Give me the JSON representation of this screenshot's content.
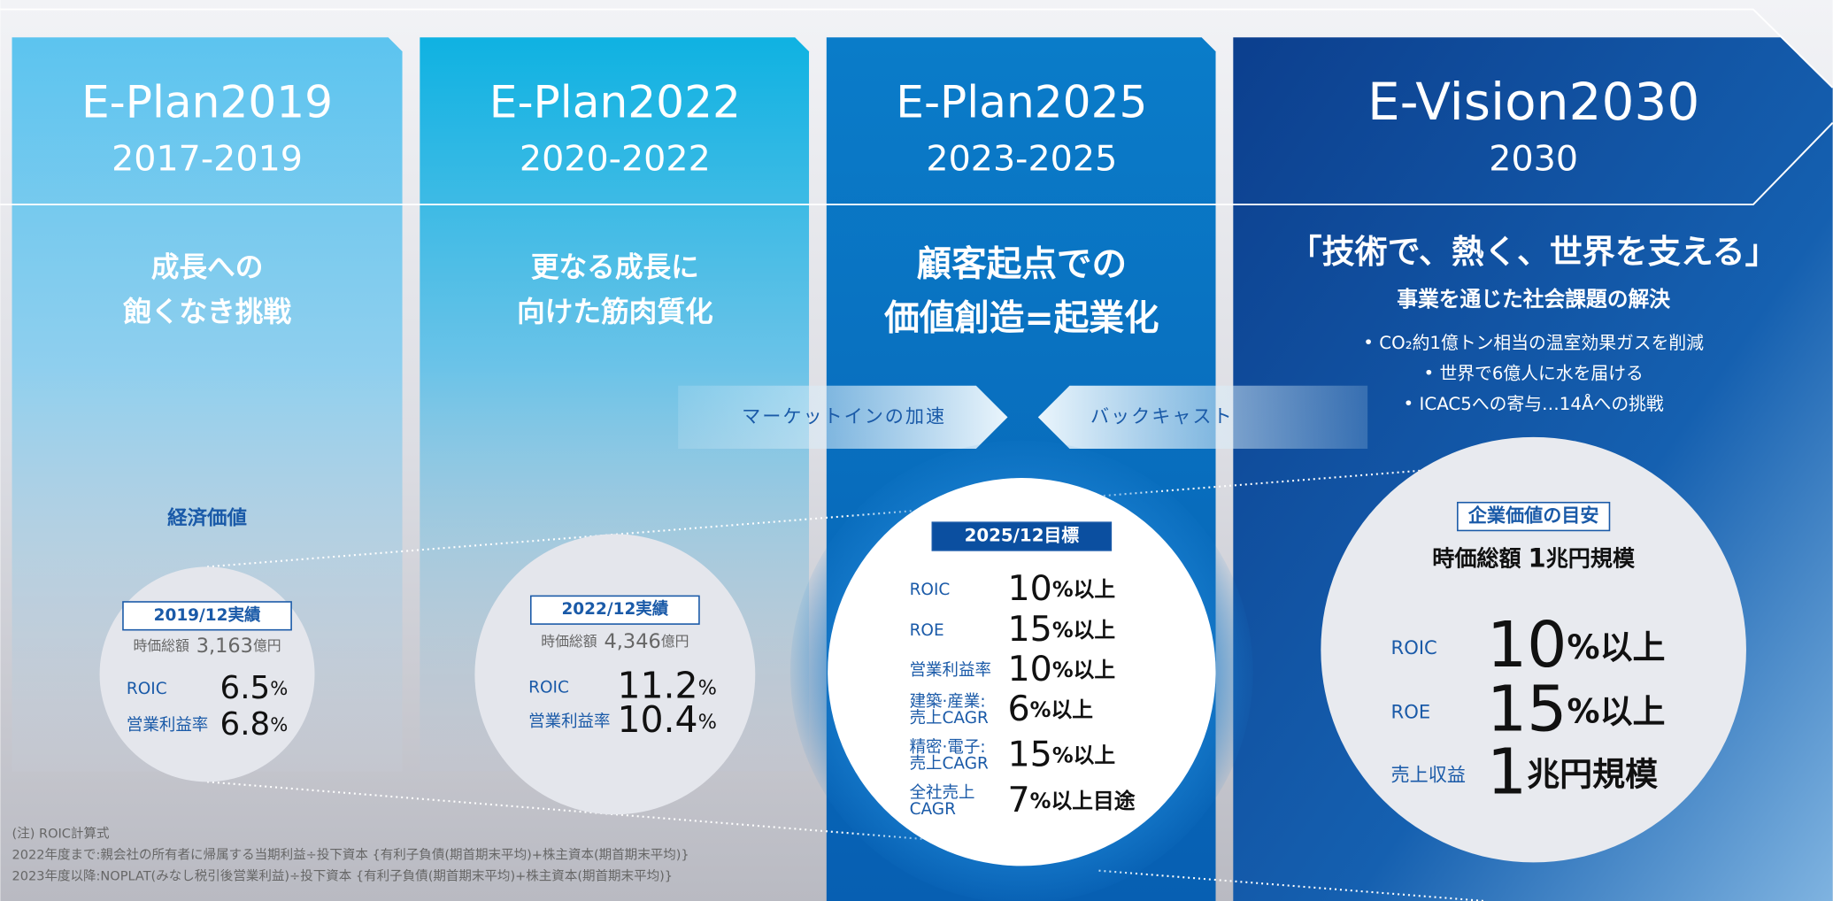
{
  "columns": [
    {
      "title": "E-Plan2019",
      "period": "2017-2019",
      "theme": [
        "成長への",
        "飽くなき挑戦"
      ]
    },
    {
      "title": "E-Plan2022",
      "period": "2020-2022",
      "theme": [
        "更なる成長に",
        "向けた筋肉質化"
      ]
    },
    {
      "title": "E-Plan2025",
      "period": "2023-2025",
      "theme": [
        "顧客起点での",
        "価値創造=起業化"
      ]
    },
    {
      "title": "E-Vision2030",
      "period": "2030",
      "theme": [
        "「技術で、熱く、世界を支える」"
      ],
      "subtitle": "事業を通じた社会課題の解決",
      "bullets": [
        "CO₂約1億トン相当の温室効果ガスを削減",
        "世界で6億人に水を届ける",
        "ICAC5への寄与…14Åへの挑戦"
      ]
    }
  ],
  "arrows": [
    "マーケットインの加速",
    "バックキャスト"
  ],
  "economic_value": "経済価値",
  "circles": [
    {
      "badge": "2019/12実績",
      "cap": {
        "label": "時価総額",
        "value": "3,163",
        "unit": "億円"
      },
      "metrics": [
        {
          "label": [
            "ROIC"
          ],
          "value": "6.5",
          "unit": "%"
        },
        {
          "label": [
            "営業利益率"
          ],
          "value": "6.8",
          "unit": "%"
        }
      ]
    },
    {
      "badge": "2022/12実績",
      "cap": {
        "label": "時価総額",
        "value": "4,346",
        "unit": "億円"
      },
      "metrics": [
        {
          "label": [
            "ROIC"
          ],
          "value": "11.2",
          "unit": "%"
        },
        {
          "label": [
            "営業利益率"
          ],
          "value": "10.4",
          "unit": "%"
        }
      ]
    },
    {
      "badge": "2025/12目標",
      "metrics": [
        {
          "label": [
            "ROIC"
          ],
          "value": "10",
          "unit": "%以上"
        },
        {
          "label": [
            "ROE"
          ],
          "value": "15",
          "unit": "%以上"
        },
        {
          "label": [
            "営業利益率"
          ],
          "value": "10",
          "unit": "%以上"
        },
        {
          "label": [
            "建築·産業:",
            "売上CAGR"
          ],
          "value": "6",
          "unit": "%以上"
        },
        {
          "label": [
            "精密·電子:",
            "売上CAGR"
          ],
          "value": "15",
          "unit": "%以上"
        },
        {
          "label": [
            "全社売上",
            "CAGR"
          ],
          "value": "7",
          "unit": "%以上目途"
        }
      ]
    },
    {
      "badge": "企業価値の目安",
      "cap": {
        "label": "時価総額",
        "value": "1",
        "unit": "兆円規模"
      },
      "metrics": [
        {
          "label": [
            "ROIC"
          ],
          "value": "10",
          "unit": "%以上"
        },
        {
          "label": [
            "ROE"
          ],
          "value": "15",
          "unit": "%以上"
        },
        {
          "label": [
            "売上収益"
          ],
          "value": "1",
          "unit": "兆円規模"
        }
      ]
    }
  ],
  "notes": [
    "(注) ROIC計算式",
    "2022年度まで:親会社の所有者に帰属する当期利益÷投下資本 {有利子負債(期首期末平均)+株主資本(期首期末平均)}",
    "2023年度以降:NOPLAT(みなし税引後営業利益)÷投下資本 {有利子負債(期首期末平均)+株主資本(期首期末平均)}"
  ]
}
